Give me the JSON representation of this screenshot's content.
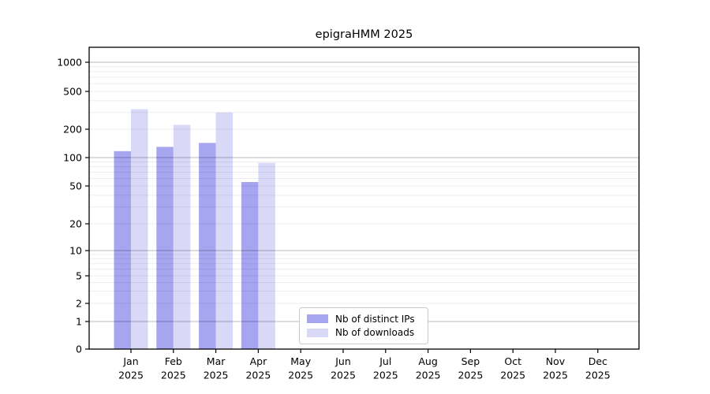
{
  "chart_data": {
    "type": "bar",
    "title": "epigraHMM 2025",
    "categories": [
      "Jan 2025",
      "Feb 2025",
      "Mar 2025",
      "Apr 2025",
      "May 2025",
      "Jun 2025",
      "Jul 2025",
      "Aug 2025",
      "Sep 2025",
      "Oct 2025",
      "Nov 2025",
      "Dec 2025"
    ],
    "series": [
      {
        "name": "Nb of distinct IPs",
        "color": "#a5a5f0",
        "values": [
          117,
          130,
          143,
          55,
          0,
          0,
          0,
          0,
          0,
          0,
          0,
          0
        ]
      },
      {
        "name": "Nb of downloads",
        "color": "#d9d9f7",
        "values": [
          325,
          222,
          300,
          88,
          0,
          0,
          0,
          0,
          0,
          0,
          0,
          0
        ]
      }
    ],
    "yscale": "log",
    "yticks": [
      1000,
      500,
      200,
      100,
      50,
      20,
      10,
      5,
      2,
      1,
      0
    ],
    "ylim": [
      0,
      1450
    ],
    "grid": "on",
    "legend_position": "lower center",
    "colors": {
      "axis": "#000000",
      "grid_major": "#b5b5b5",
      "grid_minor": "#ececec",
      "background": "#ffffff"
    }
  }
}
